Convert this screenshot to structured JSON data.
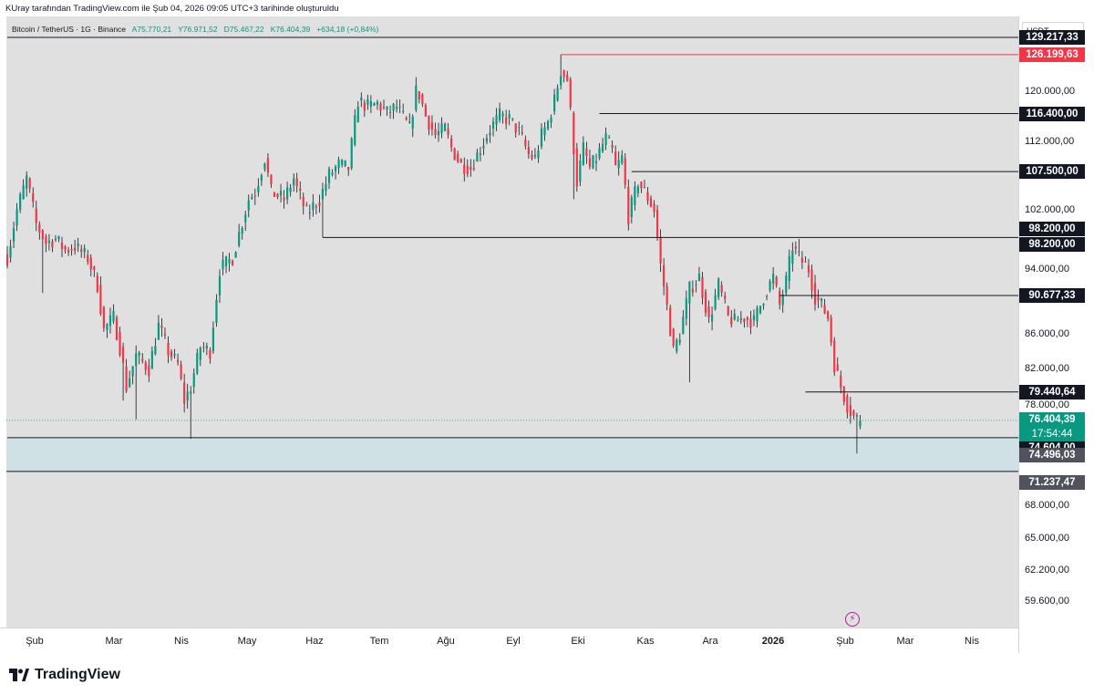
{
  "header": {
    "text": "KUray tarafından TradingView.com ile Şub 04, 2026 09:05 UTC+3 tarihinde oluşturuldu"
  },
  "legend": {
    "symbol": "Bitcoin / TetherUS · 1G · Binance",
    "open": "A75.770,21",
    "high": "Y76.971,52",
    "low": "D75.467,22",
    "close": "K76.404,39",
    "change": "+634,18 (+0,84%)"
  },
  "currency": "USDT",
  "brand": "TradingView",
  "colors": {
    "up": "#089981",
    "down": "#f23645",
    "plot_bg": "#e0e0e0",
    "zone": "#cfe1e4"
  },
  "chart_data": {
    "type": "candlestick",
    "ylim": [
      57500,
      133000
    ],
    "y_ticks": [
      {
        "value": 120000,
        "label": "120.000,00"
      },
      {
        "value": 112000,
        "label": "112.000,00"
      },
      {
        "value": 102000,
        "label": "102.000,00"
      },
      {
        "value": 94000,
        "label": "94.000,00"
      },
      {
        "value": 86000,
        "label": "86.000,00"
      },
      {
        "value": 82000,
        "label": "82.000,00"
      },
      {
        "value": 78000,
        "label": "78.000,00"
      },
      {
        "value": 68000,
        "label": "68.000,00"
      },
      {
        "value": 65000,
        "label": "65.000,00"
      },
      {
        "value": 62200,
        "label": "62.200,00"
      },
      {
        "value": 59600,
        "label": "59.600,00"
      }
    ],
    "x_labels": [
      {
        "label": "Şub",
        "bold": false
      },
      {
        "label": "Mar",
        "bold": false
      },
      {
        "label": "Nis",
        "bold": false
      },
      {
        "label": "May",
        "bold": false
      },
      {
        "label": "Haz",
        "bold": false
      },
      {
        "label": "Tem",
        "bold": false
      },
      {
        "label": "Ağu",
        "bold": false
      },
      {
        "label": "Eyl",
        "bold": false
      },
      {
        "label": "Eki",
        "bold": false
      },
      {
        "label": "Kas",
        "bold": false
      },
      {
        "label": "Ara",
        "bold": false
      },
      {
        "label": "2026",
        "bold": true
      },
      {
        "label": "Şub",
        "bold": false
      },
      {
        "label": "Mar",
        "bold": false
      },
      {
        "label": "Nis",
        "bold": false
      }
    ],
    "price_path": [
      [
        0,
        95500
      ],
      [
        3,
        102000
      ],
      [
        6,
        106500
      ],
      [
        9,
        100000
      ],
      [
        12,
        97500
      ],
      [
        15,
        98000
      ],
      [
        18,
        96500
      ],
      [
        21,
        97000
      ],
      [
        25,
        95500
      ],
      [
        28,
        92000
      ],
      [
        30,
        86500
      ],
      [
        33,
        88000
      ],
      [
        35,
        84500
      ],
      [
        37,
        80000
      ],
      [
        40,
        83500
      ],
      [
        44,
        82000
      ],
      [
        47,
        87000
      ],
      [
        50,
        84000
      ],
      [
        53,
        82500
      ],
      [
        55,
        78500
      ],
      [
        57,
        80000
      ],
      [
        60,
        84500
      ],
      [
        63,
        84000
      ],
      [
        66,
        94000
      ],
      [
        70,
        95500
      ],
      [
        75,
        103500
      ],
      [
        77,
        104500
      ],
      [
        80,
        109500
      ],
      [
        82,
        104500
      ],
      [
        86,
        103500
      ],
      [
        89,
        106500
      ],
      [
        90,
        105000
      ],
      [
        93,
        101500
      ],
      [
        97,
        103500
      ],
      [
        100,
        107000
      ],
      [
        103,
        108500
      ],
      [
        106,
        108000
      ],
      [
        109,
        118500
      ],
      [
        112,
        117500
      ],
      [
        115,
        118000
      ],
      [
        118,
        116500
      ],
      [
        121,
        117500
      ],
      [
        125,
        114000
      ],
      [
        127,
        120000
      ],
      [
        128,
        119500
      ],
      [
        130,
        116000
      ],
      [
        133,
        113000
      ],
      [
        136,
        114000
      ],
      [
        138,
        111000
      ],
      [
        141,
        108500
      ],
      [
        144,
        108000
      ],
      [
        147,
        111000
      ],
      [
        150,
        114000
      ],
      [
        153,
        116000
      ],
      [
        156,
        115500
      ],
      [
        159,
        113500
      ],
      [
        162,
        110000
      ],
      [
        164,
        109500
      ],
      [
        166,
        113000
      ],
      [
        168,
        115000
      ],
      [
        170,
        118500
      ],
      [
        172,
        123500
      ],
      [
        174,
        122000
      ],
      [
        176,
        111000
      ],
      [
        177,
        106000
      ],
      [
        179,
        111000
      ],
      [
        181,
        108000
      ],
      [
        183,
        109500
      ],
      [
        186,
        112500
      ],
      [
        188,
        110500
      ],
      [
        189,
        108000
      ],
      [
        191,
        109500
      ],
      [
        193,
        101000
      ],
      [
        196,
        106000
      ],
      [
        198,
        104500
      ],
      [
        201,
        102000
      ],
      [
        203,
        94500
      ],
      [
        207,
        84000
      ],
      [
        209,
        86000
      ],
      [
        212,
        91500
      ],
      [
        215,
        93000
      ],
      [
        218,
        87500
      ],
      [
        221,
        92000
      ],
      [
        224,
        88000
      ],
      [
        226,
        87500
      ],
      [
        229,
        88000
      ],
      [
        232,
        87500
      ],
      [
        235,
        90500
      ],
      [
        238,
        93000
      ],
      [
        240,
        89500
      ],
      [
        242,
        92500
      ],
      [
        244,
        97000
      ],
      [
        246,
        95500
      ],
      [
        249,
        94000
      ],
      [
        251,
        90500
      ],
      [
        253,
        89500
      ],
      [
        255,
        88000
      ],
      [
        257,
        82500
      ],
      [
        259,
        80000
      ],
      [
        261,
        78000
      ],
      [
        263,
        76800
      ],
      [
        265,
        76400
      ]
    ],
    "wick_extremes": [
      {
        "i": 11,
        "value": 91000
      },
      {
        "i": 36,
        "value": 78500
      },
      {
        "i": 40,
        "value": 76500
      },
      {
        "i": 57,
        "value": 74500
      },
      {
        "i": 98,
        "value": 98200
      },
      {
        "i": 172,
        "value": 126199.63
      },
      {
        "i": 176,
        "value": 103500
      },
      {
        "i": 212,
        "value": 80500
      },
      {
        "i": 246,
        "value": 98000
      },
      {
        "i": 264,
        "value": 73000
      }
    ],
    "last_candle": {
      "open": 75770.21,
      "high": 76971.52,
      "low": 75467.22,
      "close": 76404.39
    },
    "levels": [
      {
        "value": 129217.33,
        "label": "129.217,33",
        "start": 0,
        "style": "black"
      },
      {
        "value": 126199.63,
        "label": "126.199,63",
        "start": 172,
        "style": "red"
      },
      {
        "value": 116400,
        "label": "116.400,00",
        "start": 184,
        "style": "black"
      },
      {
        "value": 107500,
        "label": "107.500,00",
        "start": 194,
        "style": "black"
      },
      {
        "value": 98200,
        "label": "98.200,00",
        "start": 98,
        "style": "black"
      },
      {
        "value": 90677.33,
        "label": "90.677,33",
        "start": 240,
        "style": "black"
      },
      {
        "value": 79440.64,
        "label": "79.440,64",
        "start": 248,
        "style": "black"
      },
      {
        "value": 74604,
        "label": "74.604,00",
        "start": 0,
        "style": "black"
      }
    ],
    "extra_labels": [
      {
        "value": 98200,
        "label": "98.200,00",
        "style": "black",
        "offset": -1
      },
      {
        "value": 74496.03,
        "label": "74.496,03",
        "style": "gray",
        "offset": 0
      },
      {
        "value": 71237.47,
        "label": "71.237,47",
        "style": "gray",
        "offset": 0
      }
    ],
    "zone": {
      "from": 71237.47,
      "to": 74604
    },
    "current": {
      "value": 76404.39,
      "label": "76.404,39",
      "countdown": "17:54:44"
    },
    "bars": 266
  }
}
